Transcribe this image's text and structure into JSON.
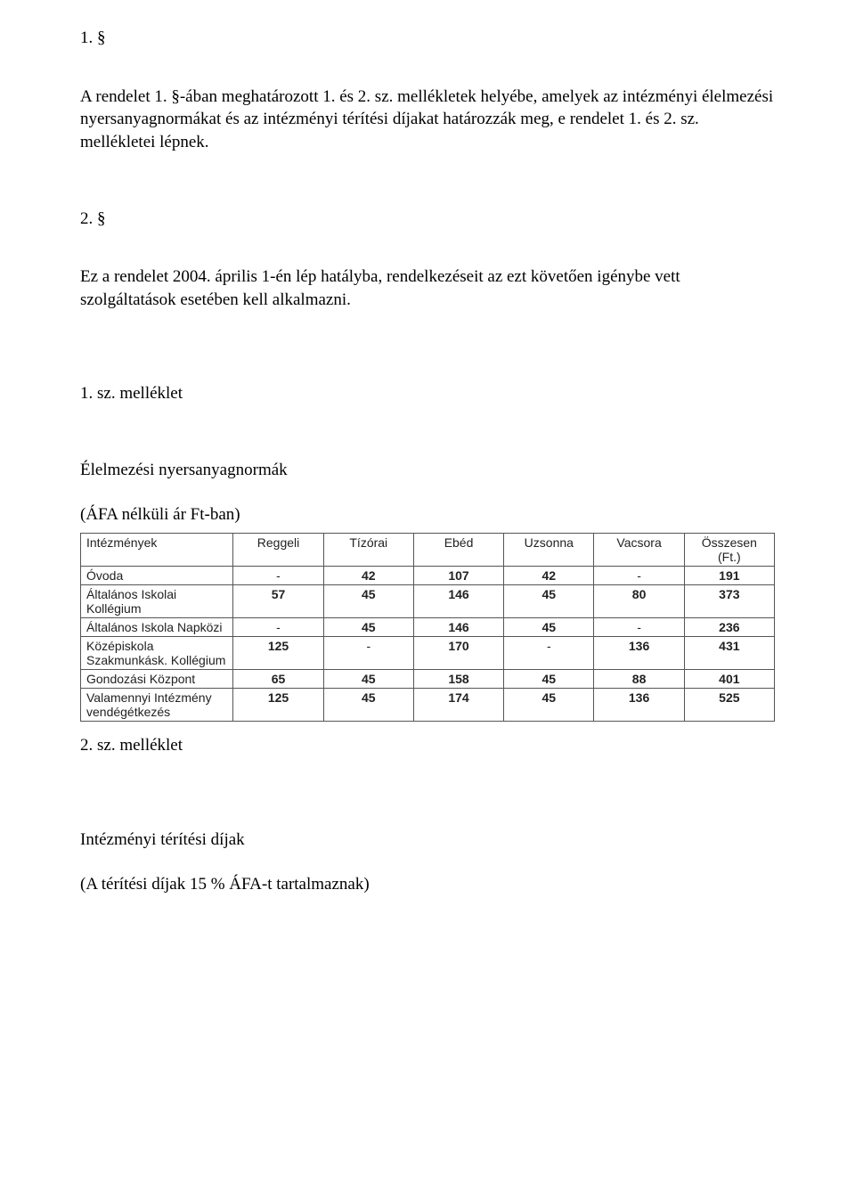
{
  "doc": {
    "sec1_num": "1. §",
    "p1": "A rendelet 1. §-ában meghatározott 1. és 2. sz. mellékletek helyébe, amelyek az intézményi élelmezési nyersanyagnormákat és az intézményi térítési díjakat határozzák meg, e rendelet 1. és 2. sz. mellékletei lépnek.",
    "sec2_num": "2. §",
    "p2": "Ez a rendelet 2004. április 1-én lép hatályba, rendelkezéseit az ezt követően igénybe vett szolgáltatások esetében kell alkalmazni.",
    "annex1_label": "1. sz. melléklet",
    "annex1_title": "Élelmezési nyersanyagnormák",
    "annex1_sub": "(ÁFA nélküli ár Ft-ban)",
    "annex2_label": "2. sz. melléklet",
    "annex2_title": "Intézményi térítési díjak",
    "annex2_sub": "(A térítési díjak 15 % ÁFA-t tartalmaznak)"
  },
  "table": {
    "type": "table",
    "font_family": "Verdana",
    "header_fontsize": 14,
    "cell_fontsize": 14,
    "border_color": "#555555",
    "background_color": "#ffffff",
    "text_color": "#222222",
    "bold_values": true,
    "columns": [
      "Intézmények",
      "Reggeli",
      "Tízórai",
      "Ebéd",
      "Uzsonna",
      "Vacsora",
      "Összesen (Ft.)"
    ],
    "col_align": [
      "left",
      "center",
      "center",
      "center",
      "center",
      "center",
      "center"
    ],
    "rows": [
      {
        "label": "Óvoda",
        "cells": [
          "-",
          "42",
          "107",
          "42",
          "-",
          "191"
        ]
      },
      {
        "label": "Általános Iskolai Kollégium",
        "cells": [
          "57",
          "45",
          "146",
          "45",
          "80",
          "373"
        ]
      },
      {
        "label": "Általános Iskola Napközi",
        "cells": [
          "-",
          "45",
          "146",
          "45",
          "-",
          "236"
        ]
      },
      {
        "label": "Középiskola Szakmunkásk. Kollégium",
        "cells": [
          "125",
          "-",
          "170",
          "-",
          "136",
          "431"
        ]
      },
      {
        "label": "Gondozási Központ",
        "cells": [
          "65",
          "45",
          "158",
          "45",
          "88",
          "401"
        ]
      },
      {
        "label": "Valamennyi Intézmény vendégétkezés",
        "cells": [
          "125",
          "45",
          "174",
          "45",
          "136",
          "525"
        ]
      }
    ]
  }
}
